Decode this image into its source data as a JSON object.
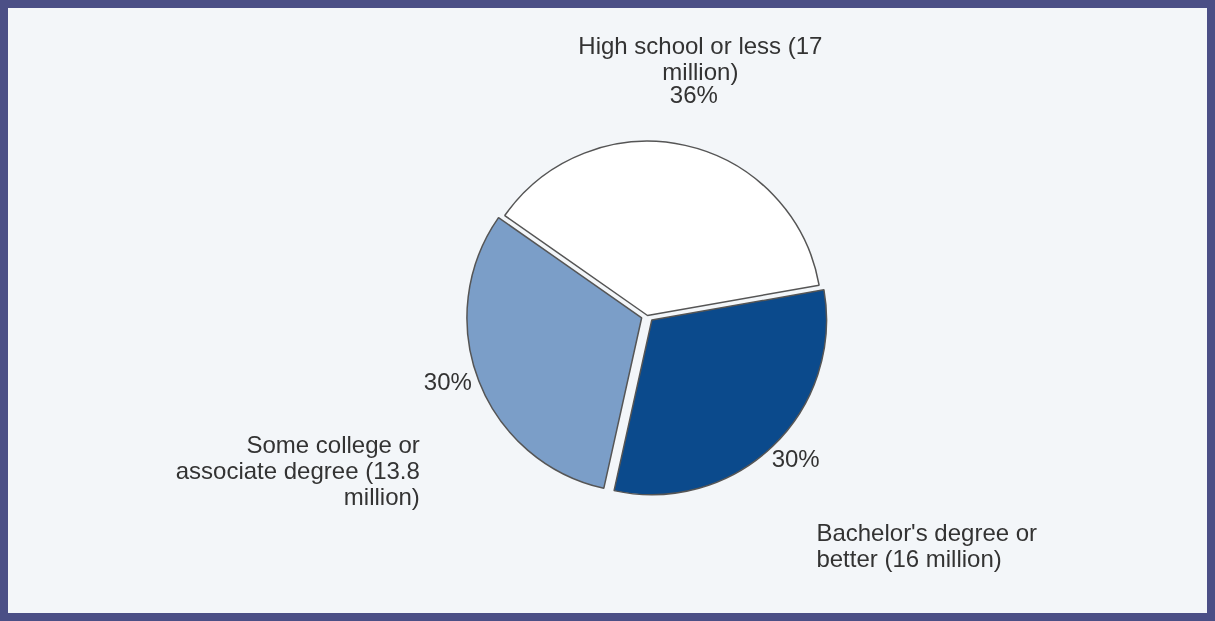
{
  "chart_data": {
    "type": "pie",
    "categories": [
      "High school or less (17 million)",
      "Bachelor's degree or better (16 million)",
      "Some college or associate degree (13.8 million)"
    ],
    "values": [
      36,
      30,
      30
    ],
    "value_labels": [
      "36%",
      "30%",
      "30%"
    ],
    "colors": [
      "#ffffff",
      "#0b4a8c",
      "#7b9ec8"
    ],
    "legend": false
  }
}
